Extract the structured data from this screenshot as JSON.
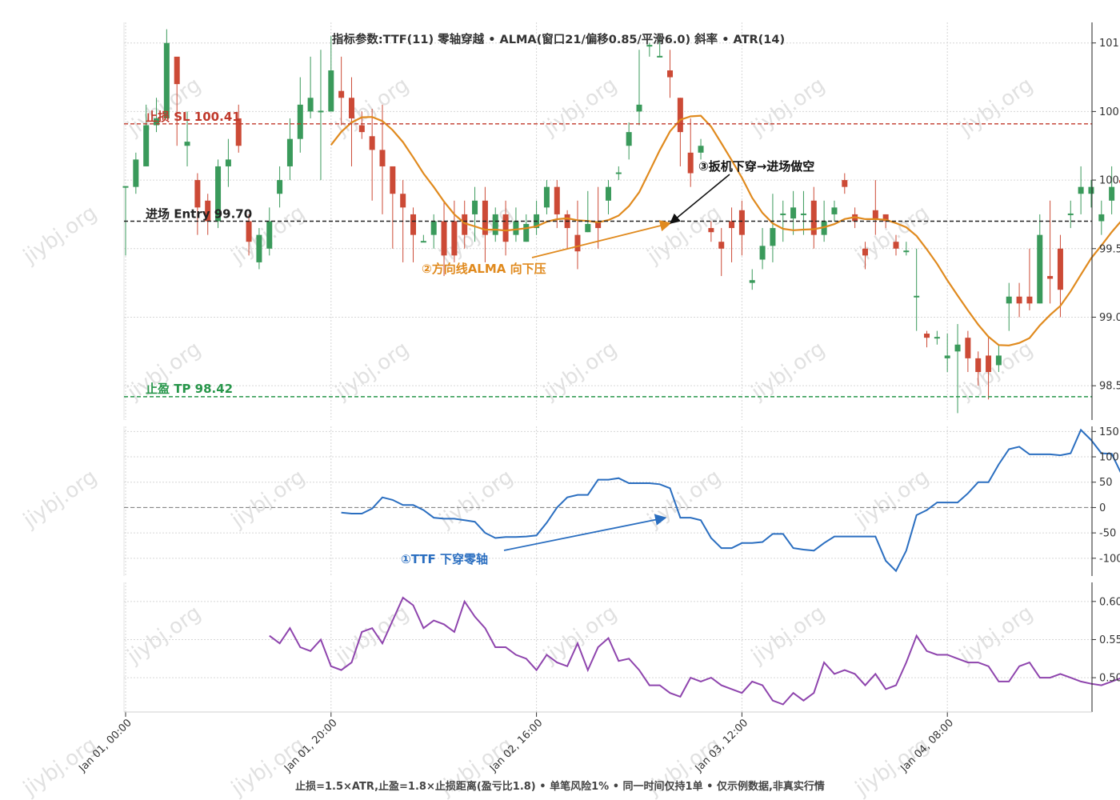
{
  "chart_data": {
    "type": "candlestick",
    "title": "指标参数:TTF(11) 零轴穿越 • ALMA(窗口21/偏移0.85/平滑6.0) 斜率 • ATR(14)",
    "footer": "止损=1.5×ATR,止盈=1.8×止损距离(盈亏比1.8) • 单笔风险1% • 同一时间仅持1单 • 仅示例数据,非真实行情",
    "watermark": "jiybj.org",
    "x_tick_labels": [
      "Jan 01, 00:00",
      "Jan 01, 20:00",
      "Jan 02, 16:00",
      "Jan 03, 12:00",
      "Jan 04, 08:00"
    ],
    "bars_per_hour": 1,
    "price_panel": {
      "y_tick_labels": [
        "98.5",
        "99.0",
        "99.5",
        "100.0",
        "100.5",
        "101.0"
      ],
      "y_tick_values": [
        98.5,
        99.0,
        99.5,
        100.0,
        100.5,
        101.0
      ],
      "ylim": [
        98.25,
        101.15
      ],
      "up_color": "#3a9a5b",
      "down_color": "#cc4a36",
      "alma_color": "#e08a1e",
      "alma_start_index": 20,
      "candles_ohlc": [
        [
          99.95,
          99.95,
          99.95,
          99.45
        ],
        [
          99.95,
          100.15,
          100.2,
          99.9
        ],
        [
          100.1,
          100.4,
          100.55,
          100.1
        ],
        [
          100.4,
          100.45,
          100.6,
          100.35
        ],
        [
          100.45,
          101.0,
          101.1,
          100.45
        ],
        [
          100.9,
          100.7,
          100.85,
          100.25
        ],
        [
          100.25,
          100.28,
          100.5,
          100.1
        ],
        [
          100.0,
          99.8,
          100.05,
          99.6
        ],
        [
          99.85,
          99.7,
          99.9,
          99.6
        ],
        [
          99.7,
          100.1,
          100.15,
          99.65
        ],
        [
          100.1,
          100.15,
          100.3,
          99.95
        ],
        [
          100.45,
          100.25,
          100.55,
          100.2
        ],
        [
          99.7,
          99.55,
          99.75,
          99.45
        ],
        [
          99.4,
          99.6,
          99.65,
          99.35
        ],
        [
          99.5,
          99.7,
          99.8,
          99.45
        ],
        [
          99.9,
          100.0,
          100.1,
          99.8
        ],
        [
          100.1,
          100.3,
          100.45,
          100.0
        ],
        [
          100.3,
          100.55,
          100.75,
          100.2
        ],
        [
          100.5,
          100.6,
          100.9,
          100.45
        ],
        [
          100.5,
          100.5,
          100.95,
          100.0
        ],
        [
          100.5,
          100.8,
          101.05,
          100.5
        ],
        [
          100.65,
          100.6,
          100.9,
          100.4
        ],
        [
          100.6,
          100.45,
          100.75,
          100.1
        ],
        [
          100.4,
          100.35,
          100.5,
          100.3
        ],
        [
          100.32,
          100.22,
          100.52,
          99.85
        ],
        [
          100.22,
          100.1,
          100.55,
          99.75
        ],
        [
          100.1,
          99.9,
          100.05,
          99.5
        ],
        [
          99.9,
          99.8,
          100.0,
          99.4
        ],
        [
          99.75,
          99.6,
          99.8,
          99.4
        ],
        [
          99.55,
          99.55,
          99.6,
          99.55
        ],
        [
          99.6,
          99.7,
          99.75,
          99.5
        ],
        [
          99.7,
          99.45,
          99.85,
          99.3
        ],
        [
          99.7,
          99.45,
          99.85,
          99.4
        ],
        [
          99.75,
          99.6,
          99.85,
          99.5
        ],
        [
          99.75,
          99.85,
          99.95,
          99.55
        ],
        [
          99.85,
          99.6,
          99.95,
          99.4
        ],
        [
          99.6,
          99.75,
          99.8,
          99.55
        ],
        [
          99.75,
          99.55,
          99.85,
          99.45
        ],
        [
          99.6,
          99.7,
          99.8,
          99.55
        ],
        [
          99.55,
          99.68,
          99.75,
          99.55
        ],
        [
          99.65,
          99.75,
          99.85,
          99.6
        ],
        [
          99.8,
          99.95,
          100.0,
          99.75
        ],
        [
          99.95,
          99.75,
          100.0,
          99.65
        ],
        [
          99.75,
          99.65,
          99.78,
          99.5
        ],
        [
          99.6,
          99.48,
          99.85,
          99.35
        ],
        [
          99.62,
          99.68,
          99.92,
          99.62
        ],
        [
          99.7,
          99.65,
          99.95,
          99.5
        ],
        [
          99.85,
          99.95,
          100.0,
          99.75
        ],
        [
          100.05,
          100.05,
          100.1,
          100.0
        ],
        [
          100.25,
          100.35,
          100.42,
          100.15
        ],
        [
          100.5,
          100.55,
          100.95,
          100.4
        ],
        [
          100.98,
          100.98,
          101.0,
          100.9
        ],
        [
          100.9,
          100.9,
          101.05,
          100.9
        ],
        [
          100.8,
          100.75,
          100.95,
          100.6
        ],
        [
          100.6,
          100.35,
          100.6,
          100.1
        ],
        [
          100.2,
          100.05,
          100.45,
          99.95
        ],
        [
          100.2,
          100.25,
          100.3,
          100.15
        ],
        [
          99.65,
          99.62,
          99.7,
          99.55
        ],
        [
          99.55,
          99.5,
          99.65,
          99.3
        ],
        [
          99.7,
          99.65,
          99.8,
          99.4
        ],
        [
          99.78,
          99.6,
          99.85,
          99.45
        ],
        [
          99.25,
          99.27,
          99.35,
          99.2
        ],
        [
          99.42,
          99.52,
          99.65,
          99.35
        ],
        [
          99.52,
          99.65,
          99.9,
          99.4
        ],
        [
          99.75,
          99.75,
          99.85,
          99.55
        ],
        [
          99.72,
          99.8,
          99.92,
          99.6
        ],
        [
          99.75,
          99.75,
          99.92,
          99.6
        ],
        [
          99.85,
          99.6,
          99.95,
          99.5
        ],
        [
          99.6,
          99.7,
          99.85,
          99.55
        ],
        [
          99.75,
          99.8,
          99.85,
          99.7
        ],
        [
          100.0,
          99.95,
          100.05,
          99.9
        ],
        [
          99.75,
          99.7,
          99.8,
          99.65
        ],
        [
          99.5,
          99.45,
          99.55,
          99.35
        ],
        [
          99.78,
          99.72,
          100.0,
          99.6
        ],
        [
          99.75,
          99.7,
          99.75,
          99.65
        ],
        [
          99.55,
          99.5,
          99.6,
          99.45
        ],
        [
          99.48,
          99.48,
          99.55,
          99.45
        ],
        [
          99.15,
          99.15,
          99.5,
          98.9
        ],
        [
          98.88,
          98.85,
          98.9,
          98.78
        ],
        [
          98.85,
          98.85,
          98.9,
          98.8
        ],
        [
          98.7,
          98.72,
          98.88,
          98.6
        ],
        [
          98.75,
          98.8,
          98.95,
          98.3
        ],
        [
          98.85,
          98.7,
          98.9,
          98.6
        ],
        [
          98.7,
          98.6,
          98.75,
          98.5
        ],
        [
          98.72,
          98.6,
          98.85,
          98.4
        ],
        [
          98.65,
          98.72,
          98.8,
          98.6
        ],
        [
          99.1,
          99.15,
          99.25,
          98.9
        ],
        [
          99.15,
          99.1,
          99.25,
          99.0
        ],
        [
          99.15,
          99.1,
          99.5,
          99.05
        ],
        [
          99.1,
          99.6,
          99.75,
          99.1
        ],
        [
          99.3,
          99.28,
          99.85,
          99.1
        ],
        [
          99.5,
          99.2,
          99.6,
          99.0
        ],
        [
          99.75,
          99.75,
          99.85,
          99.65
        ],
        [
          99.9,
          99.95,
          100.1,
          99.75
        ],
        [
          99.9,
          99.95,
          100.0,
          99.8
        ],
        [
          99.7,
          99.75,
          99.85,
          99.6
        ],
        [
          99.85,
          99.95,
          100.1,
          99.75
        ],
        [
          100.0,
          99.98,
          100.05,
          99.8
        ],
        [
          99.95,
          100.05,
          100.1,
          99.6
        ],
        [
          99.85,
          99.85,
          99.95,
          99.8
        ],
        [
          99.85,
          99.95,
          100.08,
          99.75
        ],
        [
          100.0,
          100.1,
          100.15,
          99.9
        ],
        [
          100.05,
          100.05,
          100.15,
          99.95
        ],
        [
          100.45,
          100.5,
          100.58,
          100.4
        ],
        [
          100.45,
          100.38,
          100.65,
          100.2
        ],
        [
          100.35,
          100.3,
          100.65,
          100.15
        ],
        [
          100.05,
          100.1,
          100.25,
          99.95
        ],
        [
          100.2,
          100.2,
          100.3,
          100.1
        ],
        [
          100.3,
          100.25,
          100.45,
          100.1
        ],
        [
          100.15,
          100.1,
          100.25,
          99.9
        ],
        [
          99.55,
          99.58,
          99.7,
          99.45
        ],
        [
          99.6,
          99.5,
          99.75,
          99.4
        ],
        [
          99.9,
          99.95,
          100.05,
          99.85
        ],
        [
          99.4,
          99.9,
          100.0,
          99.35
        ]
      ],
      "sl_label": "止损 SL 100.41",
      "sl_value": 100.41,
      "sl_color": "#c0392b",
      "entry_label": "进场 Entry 99.70",
      "entry_value": 99.7,
      "entry_color": "#222222",
      "tp_label": "止盈 TP 98.42",
      "tp_value": 98.42,
      "tp_color": "#27964a",
      "annotation_2": "②方向线ALMA 向下压",
      "annotation_3": "③扳机下穿→进场做空"
    },
    "ttf_panel": {
      "y_tick_labels": [
        "150",
        "100",
        "50",
        "0",
        "-50",
        "-100"
      ],
      "y_tick_values": [
        150,
        100,
        50,
        0,
        -50,
        -100
      ],
      "ylim": [
        -135,
        160
      ],
      "color": "#2a6ec0",
      "zero_line": true,
      "annotation_1": "①TTF 下穿零轴",
      "points": [
        [
          21,
          -10
        ],
        [
          22,
          -12
        ],
        [
          23,
          -12
        ],
        [
          24,
          -2
        ],
        [
          25,
          20
        ],
        [
          26,
          15
        ],
        [
          27,
          5
        ],
        [
          28,
          5
        ],
        [
          29,
          -5
        ],
        [
          30,
          -20
        ],
        [
          31,
          -22
        ],
        [
          32,
          -22
        ],
        [
          33,
          -25
        ],
        [
          34,
          -28
        ],
        [
          35,
          -50
        ],
        [
          36,
          -60
        ],
        [
          37,
          -58
        ],
        [
          38,
          -58
        ],
        [
          39,
          -57
        ],
        [
          40,
          -55
        ],
        [
          41,
          -30
        ],
        [
          42,
          0
        ],
        [
          43,
          20
        ],
        [
          44,
          25
        ],
        [
          45,
          25
        ],
        [
          46,
          55
        ],
        [
          47,
          55
        ],
        [
          48,
          58
        ],
        [
          49,
          48
        ],
        [
          50,
          48
        ],
        [
          51,
          48
        ],
        [
          52,
          46
        ],
        [
          53,
          38
        ],
        [
          54,
          -20
        ],
        [
          55,
          -20
        ],
        [
          56,
          -25
        ],
        [
          57,
          -60
        ],
        [
          58,
          -80
        ],
        [
          59,
          -80
        ],
        [
          60,
          -70
        ],
        [
          61,
          -70
        ],
        [
          62,
          -68
        ],
        [
          63,
          -52
        ],
        [
          64,
          -52
        ],
        [
          65,
          -80
        ],
        [
          66,
          -83
        ],
        [
          67,
          -85
        ],
        [
          68,
          -70
        ],
        [
          69,
          -57
        ],
        [
          70,
          -57
        ],
        [
          71,
          -57
        ],
        [
          72,
          -57
        ],
        [
          73,
          -57
        ],
        [
          74,
          -105
        ],
        [
          75,
          -125
        ],
        [
          76,
          -85
        ],
        [
          77,
          -15
        ],
        [
          78,
          -5
        ],
        [
          79,
          10
        ],
        [
          80,
          10
        ],
        [
          81,
          10
        ],
        [
          82,
          28
        ],
        [
          83,
          50
        ],
        [
          84,
          50
        ],
        [
          85,
          85
        ],
        [
          86,
          115
        ],
        [
          87,
          120
        ],
        [
          88,
          105
        ],
        [
          89,
          105
        ],
        [
          90,
          105
        ],
        [
          91,
          103
        ],
        [
          92,
          107
        ],
        [
          93,
          153
        ],
        [
          94,
          133
        ],
        [
          95,
          107
        ],
        [
          96,
          106
        ],
        [
          97,
          64
        ]
      ]
    },
    "atr_panel": {
      "y_tick_labels": [
        "0.60",
        "0.55",
        "0.50"
      ],
      "y_tick_values": [
        0.6,
        0.55,
        0.5
      ],
      "ylim": [
        0.455,
        0.625
      ],
      "color": "#8e44ad",
      "points": [
        [
          14,
          0.555
        ],
        [
          15,
          0.545
        ],
        [
          16,
          0.565
        ],
        [
          17,
          0.54
        ],
        [
          18,
          0.535
        ],
        [
          19,
          0.55
        ],
        [
          20,
          0.515
        ],
        [
          21,
          0.51
        ],
        [
          22,
          0.52
        ],
        [
          23,
          0.56
        ],
        [
          24,
          0.565
        ],
        [
          25,
          0.545
        ],
        [
          26,
          0.575
        ],
        [
          27,
          0.605
        ],
        [
          28,
          0.595
        ],
        [
          29,
          0.565
        ],
        [
          30,
          0.575
        ],
        [
          31,
          0.57
        ],
        [
          32,
          0.56
        ],
        [
          33,
          0.6
        ],
        [
          34,
          0.58
        ],
        [
          35,
          0.565
        ],
        [
          36,
          0.54
        ],
        [
          37,
          0.54
        ],
        [
          38,
          0.53
        ],
        [
          39,
          0.525
        ],
        [
          40,
          0.51
        ],
        [
          41,
          0.53
        ],
        [
          42,
          0.52
        ],
        [
          43,
          0.515
        ],
        [
          44,
          0.545
        ],
        [
          45,
          0.51
        ],
        [
          46,
          0.54
        ],
        [
          47,
          0.552
        ],
        [
          48,
          0.522
        ],
        [
          49,
          0.525
        ],
        [
          50,
          0.51
        ],
        [
          51,
          0.49
        ],
        [
          52,
          0.49
        ],
        [
          53,
          0.48
        ],
        [
          54,
          0.475
        ],
        [
          55,
          0.5
        ],
        [
          56,
          0.495
        ],
        [
          57,
          0.5
        ],
        [
          58,
          0.49
        ],
        [
          59,
          0.485
        ],
        [
          60,
          0.48
        ],
        [
          61,
          0.495
        ],
        [
          62,
          0.49
        ],
        [
          63,
          0.47
        ],
        [
          64,
          0.465
        ],
        [
          65,
          0.48
        ],
        [
          66,
          0.47
        ],
        [
          67,
          0.48
        ],
        [
          68,
          0.52
        ],
        [
          69,
          0.505
        ],
        [
          70,
          0.51
        ],
        [
          71,
          0.505
        ],
        [
          72,
          0.49
        ],
        [
          73,
          0.505
        ],
        [
          74,
          0.485
        ],
        [
          75,
          0.49
        ],
        [
          76,
          0.52
        ],
        [
          77,
          0.555
        ],
        [
          78,
          0.535
        ],
        [
          79,
          0.53
        ],
        [
          80,
          0.53
        ],
        [
          81,
          0.525
        ],
        [
          82,
          0.52
        ],
        [
          83,
          0.52
        ],
        [
          84,
          0.515
        ],
        [
          85,
          0.495
        ],
        [
          86,
          0.495
        ],
        [
          87,
          0.515
        ],
        [
          88,
          0.52
        ],
        [
          89,
          0.5
        ],
        [
          90,
          0.5
        ],
        [
          91,
          0.505
        ],
        [
          92,
          0.5
        ],
        [
          93,
          0.495
        ],
        [
          94,
          0.492
        ],
        [
          95,
          0.49
        ],
        [
          96,
          0.495
        ],
        [
          97,
          0.5
        ]
      ]
    }
  }
}
